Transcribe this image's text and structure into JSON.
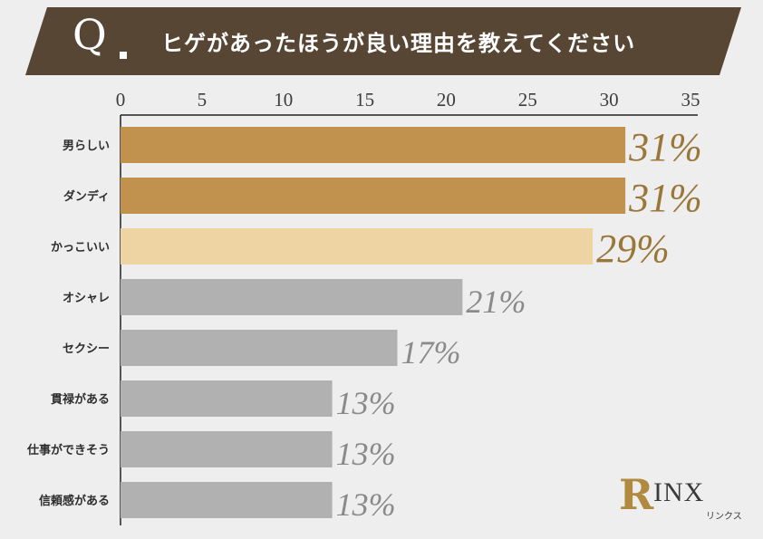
{
  "header": {
    "q_mark": "Q",
    "title": "ヒゲがあったほうが良い理由を教えてください"
  },
  "colors": {
    "banner": "#574634",
    "accent_dark": "#c1914e",
    "accent_light": "#eed4a2",
    "neutral": "#b2b1b1",
    "label_gold": "#9a7638",
    "label_gray": "#8a8a8a"
  },
  "chart_data": {
    "type": "bar",
    "orientation": "horizontal",
    "categories": [
      "男らしい",
      "ダンディ",
      "かっこいい",
      "オシャレ",
      "セクシー",
      "貫禄がある",
      "仕事ができそう",
      "信頼感がある"
    ],
    "values": [
      31,
      31,
      29,
      21,
      17,
      13,
      13,
      13
    ],
    "data_labels": [
      "31%",
      "31%",
      "29%",
      "21%",
      "17%",
      "13%",
      "13%",
      "13%"
    ],
    "bar_styles": [
      "accent_dark",
      "accent_dark",
      "accent_light",
      "neutral",
      "neutral",
      "neutral",
      "neutral",
      "neutral"
    ],
    "xlim": [
      0,
      35
    ],
    "xticks": [
      "0",
      "5",
      "10",
      "15",
      "20",
      "25",
      "30",
      "35"
    ],
    "tick_position": "top",
    "grid": false
  },
  "logo": {
    "initial": "R",
    "word": "INX",
    "subtitle": "リンクス"
  }
}
